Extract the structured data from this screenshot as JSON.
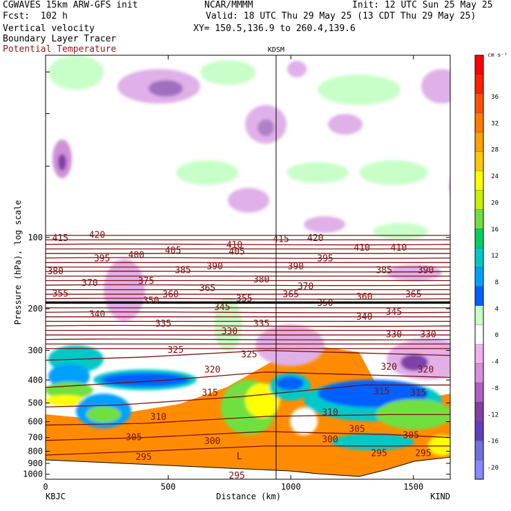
{
  "header": {
    "model": "CGWAVES 15km ARW-GFS init",
    "org": "NCAR/MMMM",
    "init": "Init: 12 UTC Sun 25 May 25",
    "fcst": "Fcst:  102 h",
    "valid": "Valid: 18 UTC Thu 29 May 25 (13 CDT Thu 29 May 25)",
    "field1": "Vertical velocity",
    "field2": "Boundary Layer Tracer",
    "field3": "Potential Temperature",
    "xy": "XY= 150.5,136.9 to 260.4,139.6"
  },
  "colors": {
    "theta_line": "#7a1010",
    "bl_tracer": "#ff8800",
    "vline": "#000000"
  },
  "chart_data": {
    "type": "heatmap",
    "title": "",
    "station_marker": "KDSM",
    "station_marker_km": 940,
    "xlabel": "Distance (km)",
    "ylabel": "Pressure (hPa), log scale",
    "x_ticks": [
      0,
      500,
      1000,
      1500
    ],
    "x_tick_labels": [
      "0",
      "500",
      "1000",
      "1500"
    ],
    "xlim": [
      0,
      1650
    ],
    "x_endpoints": {
      "left": "KBJC",
      "right": "KIND"
    },
    "y_scale": "log",
    "ylim": [
      1050,
      17
    ],
    "y_ticks": [
      100,
      200,
      300,
      400,
      500,
      600,
      700,
      800,
      900,
      1000
    ],
    "y_tick_labels": [
      "100",
      "200",
      "300",
      "400",
      "500",
      "600",
      "700",
      "800",
      "900",
      "1000"
    ],
    "colorbar": {
      "unit": "cm s⁻¹",
      "levels": [
        36,
        32,
        28,
        24,
        20,
        16,
        12,
        8,
        4,
        0,
        -4,
        -8,
        -12,
        -16,
        -20
      ],
      "colors": [
        "#ff0000",
        "#ff2000",
        "#ff5000",
        "#ff7a00",
        "#ffa000",
        "#ffc800",
        "#ffff00",
        "#c8f000",
        "#70e040",
        "#00d060",
        "#00c8c8",
        "#00a0ff",
        "#0060ff",
        "#c8ffc8",
        "#ffffff",
        "#f0b0f0",
        "#d890d8",
        "#b060c0",
        "#8040a8",
        "#6040c0",
        "#7070e0",
        "#8888ff"
      ]
    },
    "theta_labels": [
      {
        "value": "415",
        "x": 60,
        "p": 100
      },
      {
        "value": "420",
        "x": 210,
        "p": 97
      },
      {
        "value": "410",
        "x": 770,
        "p": 107
      },
      {
        "value": "415",
        "x": 960,
        "p": 101
      },
      {
        "value": "420",
        "x": 1100,
        "p": 100
      },
      {
        "value": "410",
        "x": 1290,
        "p": 110
      },
      {
        "value": "410",
        "x": 1440,
        "p": 110
      },
      {
        "value": "395",
        "x": 230,
        "p": 122
      },
      {
        "value": "400",
        "x": 370,
        "p": 118
      },
      {
        "value": "405",
        "x": 520,
        "p": 113
      },
      {
        "value": "405",
        "x": 780,
        "p": 114
      },
      {
        "value": "395",
        "x": 1140,
        "p": 122
      },
      {
        "value": "380",
        "x": 40,
        "p": 138
      },
      {
        "value": "385",
        "x": 560,
        "p": 137
      },
      {
        "value": "390",
        "x": 690,
        "p": 132
      },
      {
        "value": "390",
        "x": 1020,
        "p": 132
      },
      {
        "value": "385",
        "x": 1380,
        "p": 137
      },
      {
        "value": "390",
        "x": 1550,
        "p": 137
      },
      {
        "value": "370",
        "x": 180,
        "p": 155
      },
      {
        "value": "375",
        "x": 410,
        "p": 152
      },
      {
        "value": "380",
        "x": 880,
        "p": 150
      },
      {
        "value": "370",
        "x": 1060,
        "p": 160
      },
      {
        "value": "355",
        "x": 60,
        "p": 172
      },
      {
        "value": "360",
        "x": 510,
        "p": 173
      },
      {
        "value": "365",
        "x": 660,
        "p": 163
      },
      {
        "value": "350",
        "x": 430,
        "p": 184
      },
      {
        "value": "355",
        "x": 810,
        "p": 180
      },
      {
        "value": "365",
        "x": 1000,
        "p": 173
      },
      {
        "value": "360",
        "x": 1300,
        "p": 177
      },
      {
        "value": "365",
        "x": 1500,
        "p": 173
      },
      {
        "value": "345",
        "x": 720,
        "p": 196
      },
      {
        "value": "350",
        "x": 1140,
        "p": 188
      },
      {
        "value": "340",
        "x": 210,
        "p": 210
      },
      {
        "value": "345",
        "x": 1420,
        "p": 205
      },
      {
        "value": "335",
        "x": 480,
        "p": 230
      },
      {
        "value": "335",
        "x": 880,
        "p": 230
      },
      {
        "value": "340",
        "x": 1300,
        "p": 215
      },
      {
        "value": "330",
        "x": 750,
        "p": 248
      },
      {
        "value": "330",
        "x": 1420,
        "p": 255
      },
      {
        "value": "330",
        "x": 1560,
        "p": 255
      },
      {
        "value": "325",
        "x": 530,
        "p": 297
      },
      {
        "value": "325",
        "x": 830,
        "p": 310
      },
      {
        "value": "320",
        "x": 680,
        "p": 360
      },
      {
        "value": "320",
        "x": 1400,
        "p": 350
      },
      {
        "value": "320",
        "x": 1550,
        "p": 360
      },
      {
        "value": "315",
        "x": 670,
        "p": 450
      },
      {
        "value": "315",
        "x": 1370,
        "p": 445
      },
      {
        "value": "315",
        "x": 1520,
        "p": 450
      },
      {
        "value": "310",
        "x": 460,
        "p": 570
      },
      {
        "value": "310",
        "x": 1160,
        "p": 545
      },
      {
        "value": "305",
        "x": 1270,
        "p": 640
      },
      {
        "value": "305",
        "x": 1490,
        "p": 680
      },
      {
        "value": "305",
        "x": 360,
        "p": 695
      },
      {
        "value": "300",
        "x": 680,
        "p": 720
      },
      {
        "value": "300",
        "x": 1160,
        "p": 710
      },
      {
        "value": "295",
        "x": 400,
        "p": 840
      },
      {
        "value": "295",
        "x": 1360,
        "p": 810
      },
      {
        "value": "295",
        "x": 1540,
        "p": 810
      },
      {
        "value": "295",
        "x": 780,
        "p": 1010
      }
    ],
    "annotations": [
      {
        "text": "L",
        "x": 790,
        "p": 840
      }
    ]
  }
}
